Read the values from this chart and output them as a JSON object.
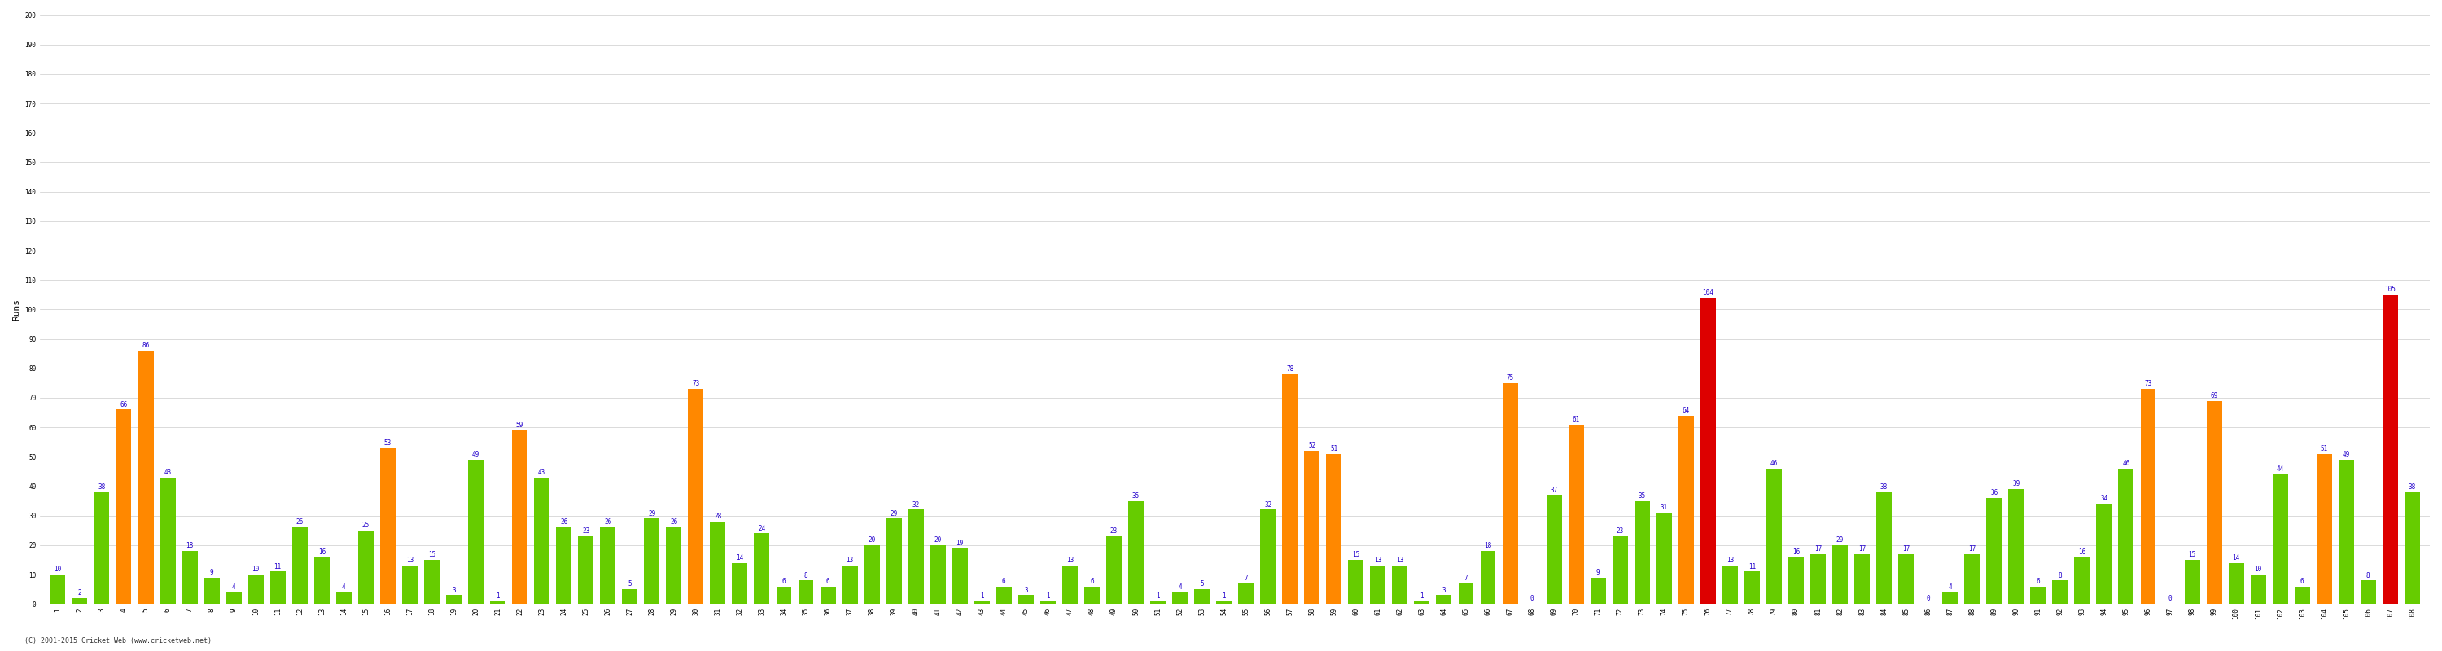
{
  "ylabel": "Runs",
  "xlabel": "",
  "ylim": [
    0,
    200
  ],
  "yticks": [
    0,
    10,
    20,
    30,
    40,
    50,
    60,
    70,
    80,
    90,
    100,
    110,
    120,
    130,
    140,
    150,
    160,
    170,
    180,
    190,
    200
  ],
  "background_color": "#ffffff",
  "grid_color": "#cccccc",
  "bar_width": 0.7,
  "values": [
    10,
    2,
    38,
    66,
    86,
    43,
    18,
    9,
    4,
    10,
    11,
    26,
    16,
    4,
    25,
    53,
    13,
    15,
    3,
    49,
    1,
    59,
    43,
    26,
    23,
    26,
    5,
    29,
    26,
    73,
    28,
    14,
    24,
    6,
    8,
    6,
    13,
    20,
    29,
    32,
    20,
    19,
    1,
    6,
    3,
    1,
    13,
    6,
    23,
    35,
    1,
    4,
    5,
    1,
    7,
    32,
    78,
    52,
    51,
    15,
    13,
    13,
    1,
    3,
    7,
    18,
    75,
    0,
    37,
    61,
    9,
    23,
    35,
    31,
    64,
    104,
    13,
    11,
    46,
    16,
    17,
    20,
    17,
    38,
    17,
    0,
    4,
    17,
    36,
    39,
    6,
    8,
    16,
    34,
    46,
    73,
    0,
    15,
    69,
    14,
    10,
    44,
    6,
    51,
    49,
    8,
    105,
    38
  ],
  "innings": [
    1,
    2,
    3,
    4,
    5,
    6,
    7,
    8,
    9,
    10,
    11,
    12,
    13,
    14,
    15,
    16,
    17,
    18,
    19,
    20,
    21,
    22,
    23,
    24,
    25,
    26,
    27,
    28,
    29,
    30,
    31,
    32,
    33,
    34,
    35,
    36,
    37,
    38,
    39,
    40,
    41,
    42,
    43,
    44,
    45,
    46,
    47,
    48,
    49,
    50,
    51,
    52,
    53,
    54,
    55,
    56,
    57,
    58,
    59,
    60,
    61,
    62,
    63,
    64,
    65,
    66,
    67,
    68,
    69,
    70,
    71,
    72,
    73,
    74,
    75,
    76,
    77,
    78,
    79,
    80,
    81,
    82,
    83,
    84,
    85,
    86,
    87,
    88,
    89,
    90,
    91,
    92,
    93,
    94,
    95,
    96,
    97,
    98,
    99,
    100,
    101,
    102,
    103,
    104,
    105,
    106,
    107,
    108
  ],
  "color_green": "#66cc00",
  "color_orange": "#ff8800",
  "color_red": "#dd0000",
  "label_color": "#2200cc",
  "label_fontsize": 5.5,
  "tick_fontsize": 5.5,
  "ylabel_fontsize": 8,
  "footer": "(C) 2001-2015 Cricket Web (www.cricketweb.net)"
}
